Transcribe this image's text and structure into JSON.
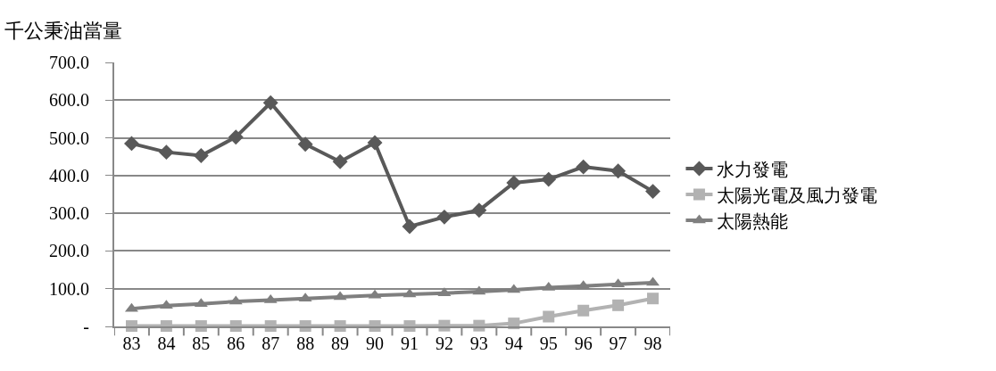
{
  "chart_data": {
    "type": "line",
    "ylabel": "千公秉油當量",
    "categories": [
      "83",
      "84",
      "85",
      "86",
      "87",
      "88",
      "89",
      "90",
      "91",
      "92",
      "93",
      "94",
      "95",
      "96",
      "97",
      "98"
    ],
    "series": [
      {
        "name": "水力發電",
        "color": "#595959",
        "marker": "diamond",
        "values": [
          485,
          462,
          453,
          502,
          593,
          483,
          437,
          487,
          265,
          290,
          308,
          381,
          390,
          423,
          412,
          358
        ]
      },
      {
        "name": "太陽光電及風力發電",
        "color": "#b2b2b2",
        "marker": "square",
        "values": [
          1,
          1,
          1,
          1,
          1,
          1,
          1,
          1,
          1,
          2,
          2,
          8,
          26,
          42,
          56,
          74
        ]
      },
      {
        "name": "太陽熱能",
        "color": "#7f7f7f",
        "marker": "triangle",
        "values": [
          47,
          55,
          60,
          66,
          70,
          74,
          78,
          82,
          85,
          88,
          92,
          97,
          103,
          107,
          112,
          116
        ]
      }
    ],
    "ylim": [
      0,
      700
    ],
    "yticks": [
      {
        "value": 0,
        "label": "-"
      },
      {
        "value": 100,
        "label": "100.0"
      },
      {
        "value": 200,
        "label": "200.0"
      },
      {
        "value": 300,
        "label": "300.0"
      },
      {
        "value": 400,
        "label": "400.0"
      },
      {
        "value": 500,
        "label": "500.0"
      },
      {
        "value": 600,
        "label": "600.0"
      },
      {
        "value": 700,
        "label": "700.0"
      }
    ],
    "grid": "y",
    "legend": "right",
    "line_style": "solid"
  }
}
